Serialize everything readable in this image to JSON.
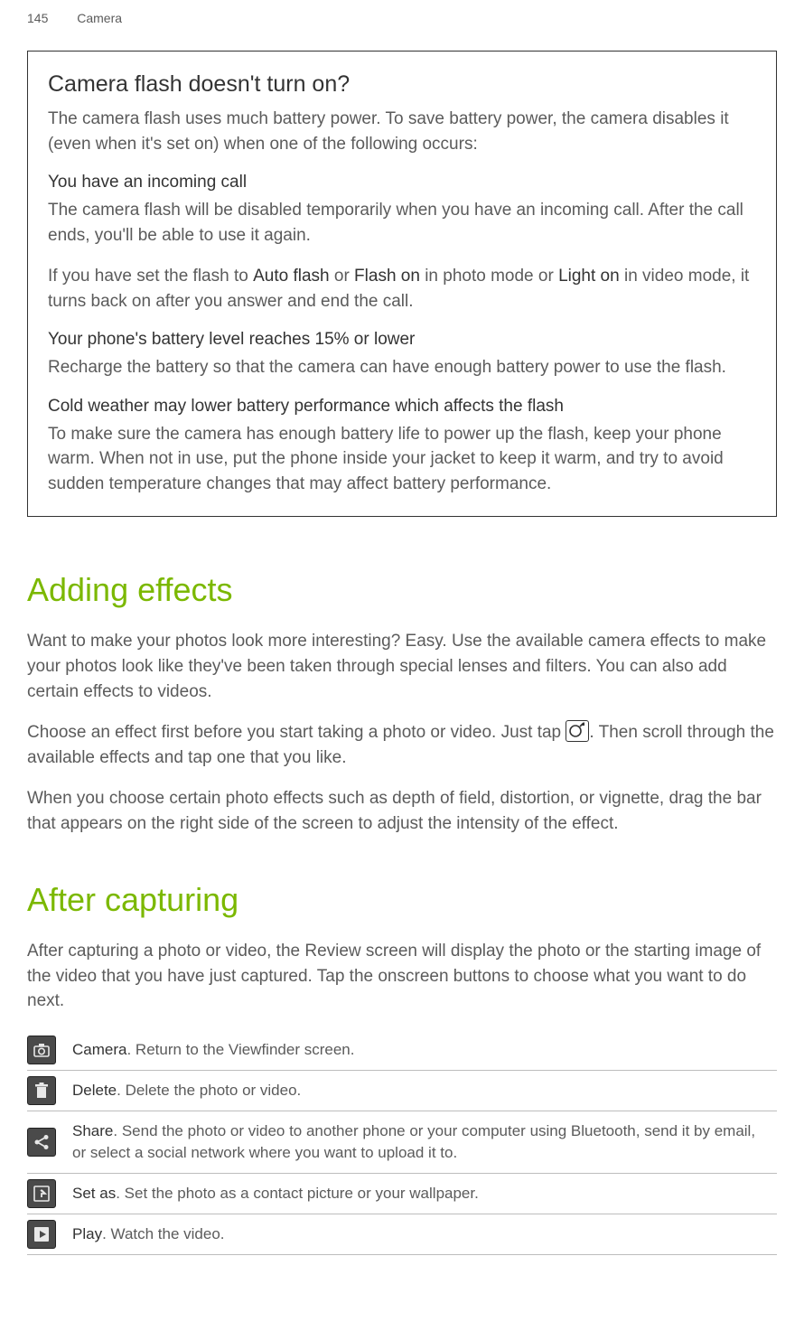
{
  "header": {
    "page_num": "145",
    "section": "Camera"
  },
  "box": {
    "title": "Camera flash doesn't turn on?",
    "intro": "The camera flash uses much battery power. To save battery power, the camera disables it (even when it's set on) when one of the following occurs:",
    "s1_head": "You have an incoming call",
    "s1_p1": "The camera flash will be disabled temporarily when you have an incoming call. After the call ends, you'll be able to use it again.",
    "s1_p2_a": "If you have set the flash to ",
    "s1_p2_b": "Auto flash",
    "s1_p2_c": " or ",
    "s1_p2_d": "Flash on",
    "s1_p2_e": " in photo mode or ",
    "s1_p2_f": "Light on",
    "s1_p2_g": " in video mode, it turns back on after you answer and end the call.",
    "s2_head": "Your phone's battery level reaches 15% or lower",
    "s2_p1": "Recharge the battery so that the camera can have enough battery power to use the flash.",
    "s3_head": "Cold weather may lower battery performance which affects the flash",
    "s3_p1": "To make sure the camera has enough battery life to power up the flash, keep your phone warm. When not in use, put the phone inside your jacket to keep it warm, and try to avoid sudden temperature changes that may affect battery performance."
  },
  "effects": {
    "title": "Adding effects",
    "p1": "Want to make your photos look more interesting? Easy. Use the available camera effects to make your photos look like they've been taken through special lenses and filters. You can also add certain effects to videos.",
    "p2_a": "Choose an effect first before you start taking a photo or video. Just tap ",
    "p2_b": ". Then scroll through the available effects and tap one that you like.",
    "p3": "When you choose certain photo effects such as depth of field, distortion, or vignette, drag the bar that appears on the right side of the screen to adjust the intensity of the effect."
  },
  "after": {
    "title": "After capturing",
    "p1": "After capturing a photo or video, the Review screen will display the photo or the starting image of the video that you have just captured. Tap the onscreen buttons to choose what you want to do next.",
    "rows": [
      {
        "name": "Camera",
        "desc": ". Return to the Viewfinder screen."
      },
      {
        "name": "Delete",
        "desc": ". Delete the photo or video."
      },
      {
        "name": "Share",
        "desc": ". Send the photo or video to another phone or your computer using Bluetooth, send it by email, or select a social network where you want to upload it to."
      },
      {
        "name": "Set as",
        "desc": ". Set the photo as a contact picture or your wallpaper."
      },
      {
        "name": "Play",
        "desc": ". Watch the video."
      }
    ]
  },
  "icons": {
    "effects_svg": "<svg width='24' height='22' viewBox='0 0 24 22'><circle cx='10' cy='11' r='6' fill='none' stroke='#333' stroke-width='1.6'/><path d='M16 5 L20 1 L20 5 Z' fill='#333'/><line x1='15' y1='6' x2='19' y2='2' stroke='#333' stroke-width='1.6'/></svg>",
    "camera_svg": "<svg width='22' height='22' viewBox='0 0 22 22'><rect x='3' y='7' width='16' height='11' rx='1.5' fill='none' stroke='#e8e8e8' stroke-width='1.6'/><circle cx='11' cy='12.5' r='3.2' fill='none' stroke='#e8e8e8' stroke-width='1.6'/><rect x='8' y='4' width='6' height='3' fill='#e8e8e8'/></svg>",
    "delete_svg": "<svg width='22' height='22' viewBox='0 0 22 22'><rect x='6' y='7' width='10' height='12' fill='#e8e8e8'/><rect x='4' y='4' width='14' height='2.5' fill='#e8e8e8'/><rect x='8.5' y='2' width='5' height='2' fill='#e8e8e8'/></svg>",
    "share_svg": "<svg width='22' height='22' viewBox='0 0 22 22'><circle cx='6' cy='11' r='2.5' fill='#e8e8e8'/><circle cx='16' cy='5.5' r='2.5' fill='#e8e8e8'/><circle cx='16' cy='16.5' r='2.5' fill='#e8e8e8'/><line x1='8' y1='10' x2='14' y2='6.5' stroke='#e8e8e8' stroke-width='1.8'/><line x1='8' y1='12' x2='14' y2='15.5' stroke='#e8e8e8' stroke-width='1.8'/></svg>",
    "setas_svg": "<svg width='22' height='22' viewBox='0 0 22 22'><rect x='3' y='3' width='16' height='16' rx='1' fill='none' stroke='#e8e8e8' stroke-width='1.6'/><path d='M11 7 L15 11 L11 11 L11 15' fill='none' stroke='#e8e8e8' stroke-width='1.8'/><path d='M10 7 L15 11' fill='none' stroke='#e8e8e8' stroke-width='1.8'/></svg>",
    "play_svg": "<svg width='22' height='22' viewBox='0 0 22 22'><rect x='3' y='3' width='16' height='16' rx='1' fill='#e8e8e8'/><path d='M9 7 L16 11 L9 15 Z' fill='#4a4a4a'/></svg>"
  }
}
